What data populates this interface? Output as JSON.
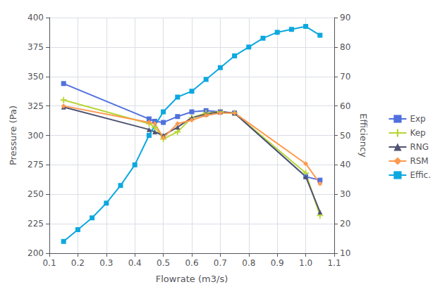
{
  "chart_data": {
    "type": "line",
    "xlabel": "Flowrate (m3/s)",
    "ylabel": "Pressure (Pa)",
    "y2label": "Efficiency",
    "xlim": [
      0.1,
      1.1
    ],
    "xticks": [
      0.1,
      0.2,
      0.3,
      0.4,
      0.5,
      0.6,
      0.7,
      0.8,
      0.9,
      {
        "value": 1.0,
        "label": "1.0"
      },
      1.1
    ],
    "ylim": [
      200,
      400
    ],
    "yticks": [
      200,
      225,
      250,
      275,
      300,
      325,
      350,
      375,
      400
    ],
    "y2lim": [
      10,
      90
    ],
    "y2ticks": [
      10,
      20,
      30,
      40,
      50,
      60,
      70,
      80,
      90
    ],
    "grid": true,
    "legend": "right",
    "series": [
      {
        "name": "Exp",
        "marker": "square",
        "x": [
          0.15,
          0.45,
          0.47,
          0.5,
          0.55,
          0.6,
          0.65,
          0.7,
          0.75,
          1.0,
          1.05
        ],
        "values": [
          344,
          314,
          312,
          311,
          316,
          320,
          321,
          320,
          319,
          265,
          262
        ]
      },
      {
        "name": "Kep",
        "marker": "plus",
        "x": [
          0.15,
          0.45,
          0.47,
          0.5,
          0.55,
          0.6,
          0.65,
          0.7,
          0.75,
          1.0,
          1.05
        ],
        "values": [
          330,
          310,
          307,
          297,
          303,
          315,
          319,
          320,
          319,
          268,
          232
        ]
      },
      {
        "name": "RNG",
        "marker": "triangle",
        "x": [
          0.15,
          0.45,
          0.47,
          0.5,
          0.55,
          0.6,
          0.65,
          0.7,
          0.75,
          1.0,
          1.05
        ],
        "values": [
          324,
          305,
          303,
          300,
          307,
          315,
          318,
          320,
          319,
          265,
          235
        ]
      },
      {
        "name": "RSM",
        "marker": "diamond",
        "x": [
          0.15,
          0.45,
          0.47,
          0.5,
          0.55,
          0.6,
          0.65,
          0.7,
          0.75,
          1.0,
          1.05
        ],
        "values": [
          325,
          311,
          310,
          298,
          310,
          313,
          317,
          319,
          319,
          276,
          259
        ]
      },
      {
        "name": "Effic.",
        "marker": "square",
        "axis": "y2",
        "x": [
          0.15,
          0.2,
          0.25,
          0.3,
          0.35,
          0.4,
          0.45,
          0.5,
          0.55,
          0.6,
          0.65,
          0.7,
          0.75,
          0.8,
          0.85,
          0.9,
          0.95,
          1.0,
          1.05
        ],
        "values": [
          14,
          18,
          22,
          27,
          33,
          40,
          50,
          58,
          63,
          65,
          69,
          73,
          77,
          80,
          83,
          85,
          86,
          87,
          84
        ]
      }
    ]
  }
}
